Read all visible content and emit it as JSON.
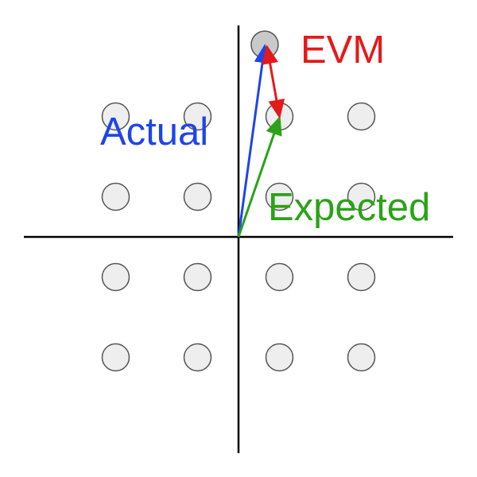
{
  "labels": {
    "actual": "Actual",
    "expected": "Expected",
    "evm": "EVM"
  },
  "colors": {
    "actual": "#1f45e6",
    "expected": "#2aa316",
    "evm": "#e31a1a",
    "axis": "#000000",
    "point_fill": "#eeeeee",
    "actual_point_fill": "#c9c9c9",
    "point_stroke": "#555555"
  },
  "constellation": {
    "ideal_points": [
      {
        "i": -3,
        "q": 3
      },
      {
        "i": -1,
        "q": 3
      },
      {
        "i": 1,
        "q": 3
      },
      {
        "i": 3,
        "q": 3
      },
      {
        "i": -3,
        "q": 1
      },
      {
        "i": -1,
        "q": 1
      },
      {
        "i": 1,
        "q": 1
      },
      {
        "i": 3,
        "q": 1
      },
      {
        "i": -3,
        "q": -1
      },
      {
        "i": -1,
        "q": -1
      },
      {
        "i": 1,
        "q": -1
      },
      {
        "i": 3,
        "q": -1
      },
      {
        "i": -3,
        "q": -3
      },
      {
        "i": -1,
        "q": -3
      },
      {
        "i": 1,
        "q": -3
      },
      {
        "i": 3,
        "q": -3
      }
    ],
    "actual_point": {
      "i": 0.64,
      "q": 4.79
    },
    "expected_point": {
      "i": 1,
      "q": 3
    },
    "icons": {
      "ideal": "constellation-point-icon",
      "actual": "measured-point-icon"
    }
  }
}
